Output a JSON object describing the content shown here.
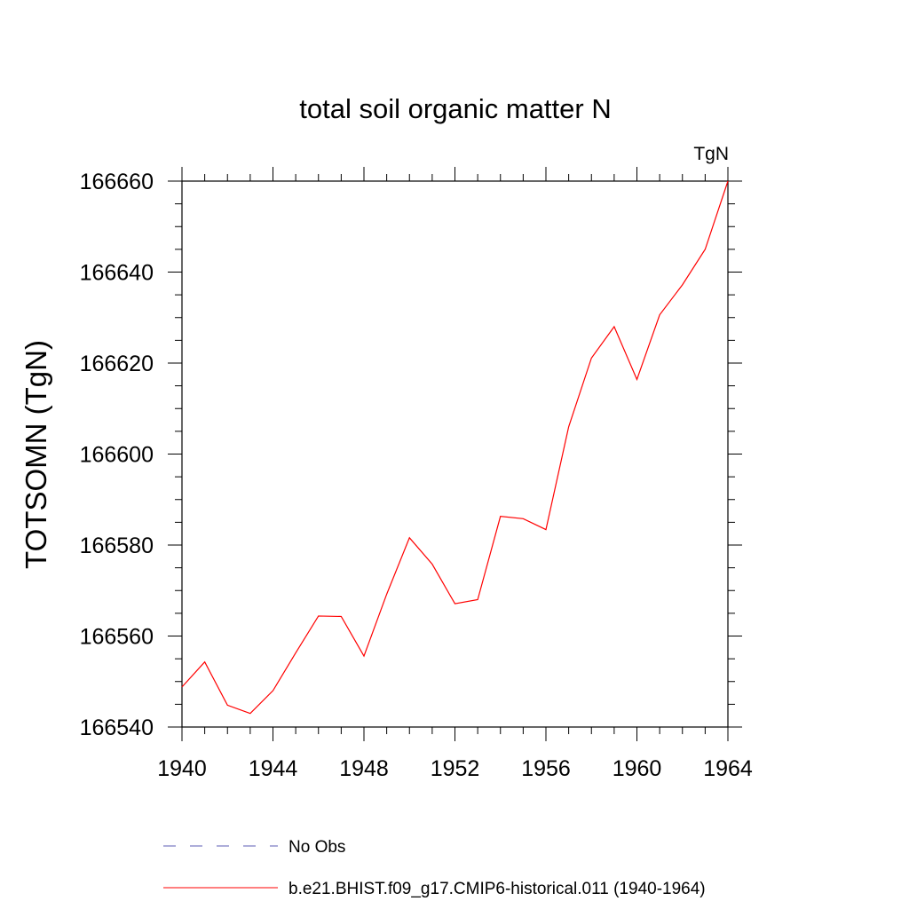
{
  "chart_data": {
    "type": "line",
    "title": "total soil organic matter N",
    "units_label": "TgN",
    "ylabel": "TOTSOMN  (TgN)",
    "xlabel": "",
    "xlim": [
      1940,
      1964
    ],
    "ylim": [
      166540,
      166660
    ],
    "x_ticks": [
      1940,
      1944,
      1948,
      1952,
      1956,
      1960,
      1964
    ],
    "y_ticks": [
      166540,
      166560,
      166580,
      166600,
      166620,
      166640,
      166660
    ],
    "grid": false,
    "legend_position": "bottom",
    "legend": [
      {
        "label": "No Obs",
        "color": "#5b5bb5",
        "style": "dashed"
      },
      {
        "label": "b.e21.BHIST.f09_g17.CMIP6-historical.011 (1940-1964)",
        "color": "#ff0000",
        "style": "solid"
      }
    ],
    "series": [
      {
        "name": "b.e21.BHIST.f09_g17.CMIP6-historical.011 (1940-1964)",
        "color": "#ff0000",
        "x": [
          1940,
          1941,
          1942,
          1943,
          1944,
          1945,
          1946,
          1947,
          1948,
          1949,
          1950,
          1951,
          1952,
          1953,
          1954,
          1955,
          1956,
          1957,
          1958,
          1959,
          1960,
          1961,
          1962,
          1963,
          1964
        ],
        "y": [
          166548.8,
          166554.3,
          166544.8,
          166543,
          166548,
          166556.3,
          166564.4,
          166564.3,
          166555.6,
          166569.2,
          166581.6,
          166575.8,
          166567.1,
          166568,
          166586.3,
          166585.8,
          166583.4,
          166606,
          166621.1,
          166628,
          166616.4,
          166630.6,
          166637.2,
          166645,
          166660
        ]
      }
    ]
  }
}
